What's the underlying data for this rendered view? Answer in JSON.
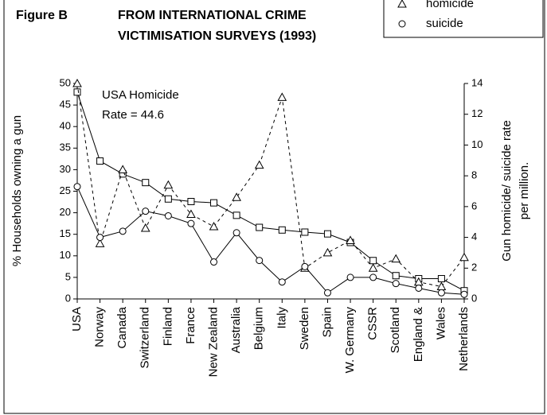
{
  "chart_data": {
    "type": "line",
    "title": [
      "Figure B",
      "FROM INTERNATIONAL CRIME",
      "VICTIMISATION SURVEYS (1993)"
    ],
    "annotation": [
      "USA Homicide",
      "Rate = 44.6"
    ],
    "y_label": "% Households owning a gun",
    "y2_label": [
      "Gun homicide/ suicide rate",
      "per million."
    ],
    "categories": [
      "USA",
      "Norway",
      "Canada",
      "Switzerland",
      "Finland",
      "France",
      "New Zealand",
      "Australia",
      "Belgium",
      "Italy",
      "Sweden",
      "Spain",
      "W. Germany",
      "CSSR",
      "Scotland",
      "England &",
      "Wales",
      "Netherlands"
    ],
    "series": [
      {
        "color": "#000000",
        "marker": "square",
        "dashed": false,
        "axis": "y",
        "values": [
          48,
          32,
          29,
          27,
          23.2,
          22.6,
          22.3,
          19.4,
          16.6,
          16.0,
          15.5,
          15.1,
          13.1,
          8.9,
          5.4,
          4.7,
          4.7,
          1.9
        ]
      },
      {
        "name": "homicide",
        "color": "#000000",
        "marker": "triangle",
        "dashed": true,
        "axis": "y2",
        "values": [
          14,
          3.6,
          8.4,
          4.6,
          7.4,
          5.5,
          4.7,
          6.6,
          8.7,
          13.1,
          2.0,
          3.0,
          3.8,
          2.0,
          2.6,
          1.1,
          0.8,
          2.7
        ]
      },
      {
        "name": "suicide",
        "color": "#000000",
        "marker": "circle",
        "dashed": false,
        "axis": "y2",
        "values": [
          7.3,
          4.0,
          4.4,
          5.7,
          5.4,
          4.9,
          2.4,
          4.3,
          2.5,
          1.1,
          2.1,
          0.4,
          1.4,
          1.4,
          1.0,
          0.7,
          0.4,
          0.3
        ]
      }
    ],
    "ylim": [
      0,
      50
    ],
    "yticks": [
      0,
      5,
      10,
      15,
      20,
      25,
      30,
      35,
      40,
      45,
      50
    ],
    "y2lim": [
      0,
      14
    ],
    "y2ticks": [
      0,
      2,
      4,
      6,
      8,
      10,
      12,
      14
    ]
  }
}
